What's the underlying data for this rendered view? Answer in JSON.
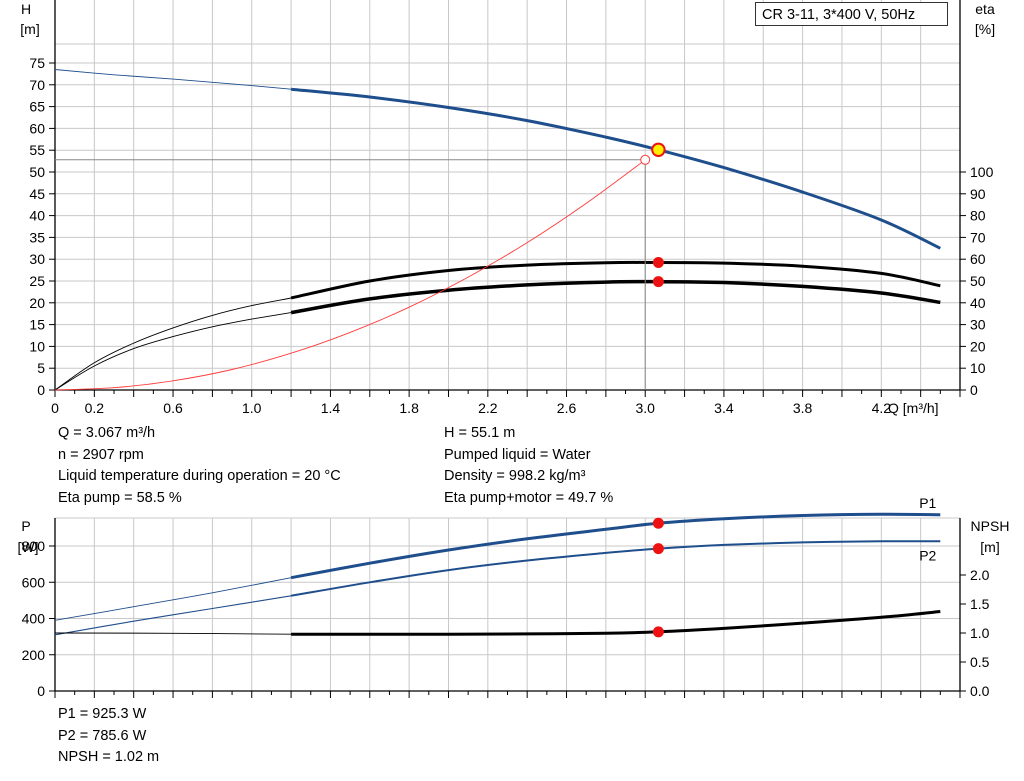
{
  "title": "CR 3-11, 3*400 V, 50Hz",
  "colors": {
    "head": "#1f4e8c",
    "power": "#1f4e8c",
    "eta": "#000000",
    "npsh": "#000000",
    "system": "#ff3a3a",
    "marker_red": "#ee1111",
    "duty_point_fill": "#ffee00"
  },
  "chart_data": [
    {
      "type": "line",
      "panel": "head-efficiency",
      "xaxis": {
        "label": "Q [m³/h]",
        "range": [
          0,
          4.6
        ],
        "ticks": [
          0,
          0.2,
          0.6,
          1.0,
          1.4,
          1.8,
          2.2,
          2.6,
          3.0,
          3.4,
          3.8,
          4.2
        ],
        "tick_labels": [
          "0",
          "0.2",
          "0.6",
          "1.0",
          "1.4",
          "1.8",
          "2.2",
          "2.6",
          "3.0",
          "3.4",
          "3.8",
          "4.2"
        ]
      },
      "yaxis_left": {
        "label_line1": "H",
        "label_line2": "[m]",
        "range": [
          0,
          75
        ],
        "ticks": [
          0,
          5,
          10,
          15,
          20,
          25,
          30,
          35,
          40,
          45,
          50,
          55,
          60,
          65,
          70,
          75
        ],
        "tick_labels": [
          "0",
          "5",
          "10",
          "15",
          "20",
          "25",
          "30",
          "35",
          "40",
          "45",
          "50",
          "55",
          "60",
          "65",
          "70",
          "75"
        ]
      },
      "yaxis_right": {
        "label_line1": "eta",
        "label_line2": "[%]",
        "range": [
          0,
          100
        ],
        "ticks": [
          0,
          10,
          20,
          30,
          40,
          50,
          60,
          70,
          80,
          90,
          100
        ],
        "tick_labels": [
          "0",
          "10",
          "20",
          "30",
          "40",
          "50",
          "60",
          "70",
          "80",
          "90",
          "100"
        ]
      },
      "grid": true,
      "series": [
        {
          "axis": "left",
          "color_key": "head",
          "thin_x": [
            0,
            0.3,
            0.6,
            0.9,
            1.2
          ],
          "thin_y": [
            73.5,
            72.3,
            71.3,
            70.2,
            69.0
          ],
          "bold_x": [
            1.2,
            1.6,
            2.0,
            2.4,
            2.8,
            3.067,
            3.4,
            3.8,
            4.2,
            4.5
          ],
          "bold_y": [
            69.0,
            67.2,
            64.8,
            61.8,
            58.0,
            55.1,
            51.0,
            45.4,
            39.0,
            32.5
          ]
        },
        {
          "axis": "right",
          "color_key": "eta",
          "thin_x": [
            0,
            0.2,
            0.4,
            0.6,
            0.8,
            1.0,
            1.2
          ],
          "thin_y": [
            0,
            12.5,
            21.5,
            28.5,
            34.2,
            38.7,
            42.2
          ],
          "bold_x": [
            1.2,
            1.6,
            2.0,
            2.4,
            2.8,
            3.067,
            3.4,
            3.8,
            4.2,
            4.5
          ],
          "bold_y": [
            42.2,
            50.0,
            54.8,
            57.3,
            58.4,
            58.5,
            58.2,
            56.8,
            53.5,
            47.8
          ]
        },
        {
          "axis": "right",
          "color_key": "eta",
          "thin_x": [
            0,
            0.2,
            0.4,
            0.6,
            0.8,
            1.0,
            1.2
          ],
          "thin_y": [
            0,
            11.0,
            19.0,
            24.5,
            29.0,
            32.5,
            35.5
          ],
          "bold_x": [
            1.2,
            1.6,
            2.0,
            2.4,
            2.8,
            3.067,
            3.4,
            3.8,
            4.2,
            4.5
          ],
          "bold_y": [
            35.5,
            41.8,
            45.8,
            48.2,
            49.5,
            49.7,
            49.3,
            47.5,
            44.5,
            40.2
          ],
          "bold_width": 3.5
        },
        {
          "axis": "left",
          "color_key": "system",
          "kind": "system-curve",
          "x": [
            0,
            0.3,
            0.6,
            0.9,
            1.2,
            1.5,
            1.8,
            2.1,
            2.4,
            2.7,
            3.0
          ],
          "y": [
            0,
            0.53,
            2.1,
            4.7,
            8.45,
            13.2,
            19.0,
            25.9,
            33.8,
            42.8,
            52.8
          ]
        }
      ],
      "duty_point": {
        "x": 3.067,
        "y": 55.1
      },
      "reference_point": {
        "x": 3.0,
        "y": 52.8
      },
      "markers": [
        {
          "x": 3.067,
          "y": 58.5,
          "axis": "right"
        },
        {
          "x": 3.067,
          "y": 49.7,
          "axis": "right"
        }
      ]
    },
    {
      "type": "line",
      "panel": "power-npsh",
      "xaxis": {
        "range": [
          0,
          4.6
        ],
        "ticks": [
          0,
          0.2,
          0.6,
          1.0,
          1.4,
          1.8,
          2.2,
          2.6,
          3.0,
          3.4,
          3.8,
          4.2
        ]
      },
      "yaxis_left": {
        "label_line1": "P",
        "label_line2": "[W]",
        "range": [
          0,
          1050
        ],
        "ticks": [
          0,
          200,
          400,
          600,
          800
        ],
        "tick_labels": [
          "0",
          "200",
          "400",
          "600",
          "800"
        ],
        "label_positions": [
          0,
          200,
          400,
          600,
          800
        ]
      },
      "yaxis_right": {
        "label_line1": "NPSH",
        "label_line2": "[m]",
        "range": [
          0,
          2.625
        ],
        "ticks": [
          0,
          0.5,
          1.0,
          1.5,
          2.0
        ],
        "tick_labels": [
          "0.0",
          "0.5",
          "1.0",
          "1.5",
          "2.0"
        ]
      },
      "grid": true,
      "series": [
        {
          "name": "P1",
          "axis": "left",
          "color_key": "power",
          "thin_x": [
            0,
            0.4,
            0.8,
            1.2
          ],
          "thin_y": [
            390,
            465,
            542,
            625
          ],
          "bold_x": [
            1.2,
            1.6,
            2.0,
            2.4,
            2.8,
            3.067,
            3.4,
            3.8,
            4.2,
            4.5
          ],
          "bold_y": [
            625,
            705,
            778,
            840,
            892,
            925.3,
            950,
            968,
            975,
            972
          ]
        },
        {
          "name": "P2",
          "axis": "left",
          "color_key": "power",
          "thin_x": [
            0,
            0.4,
            0.8,
            1.2
          ],
          "thin_y": [
            310,
            385,
            455,
            525
          ],
          "thin_width": 1.1,
          "bold_x": [
            1.2,
            1.6,
            2.0,
            2.4,
            2.8,
            3.067,
            3.4,
            3.8,
            4.2,
            4.5
          ],
          "bold_y": [
            525,
            600,
            667,
            720,
            762,
            785.6,
            806,
            820,
            826,
            826
          ],
          "bold_width": 2
        },
        {
          "axis": "right",
          "color_key": "npsh",
          "thin_x": [
            0,
            0.6,
            1.2
          ],
          "thin_y": [
            1.0,
            0.995,
            0.98
          ],
          "bold_x": [
            1.2,
            1.6,
            2.0,
            2.4,
            2.8,
            3.067,
            3.4,
            3.8,
            4.2,
            4.5
          ],
          "bold_y": [
            0.98,
            0.98,
            0.98,
            0.985,
            0.995,
            1.02,
            1.08,
            1.17,
            1.27,
            1.37
          ]
        }
      ],
      "markers": [
        {
          "x": 3.067,
          "y": 925.3,
          "axis": "left"
        },
        {
          "x": 3.067,
          "y": 785.6,
          "axis": "left"
        },
        {
          "x": 3.067,
          "y": 1.02,
          "axis": "right"
        }
      ]
    }
  ],
  "readout_top": {
    "q": "Q = 3.067 m³/h",
    "n": "n = 2907 rpm",
    "liquid_temp": "Liquid temperature during operation = 20 °C",
    "eta_pump": "Eta pump = 58.5 %",
    "h": "H = 55.1 m",
    "pumped_liquid": "Pumped liquid = Water",
    "density": "Density = 998.2 kg/m³",
    "eta_pump_motor": "Eta pump+motor = 49.7 %"
  },
  "readout_bottom": {
    "p1": "P1 = 925.3 W",
    "p2": "P2 = 785.6 W",
    "npsh": "NPSH = 1.02 m"
  }
}
